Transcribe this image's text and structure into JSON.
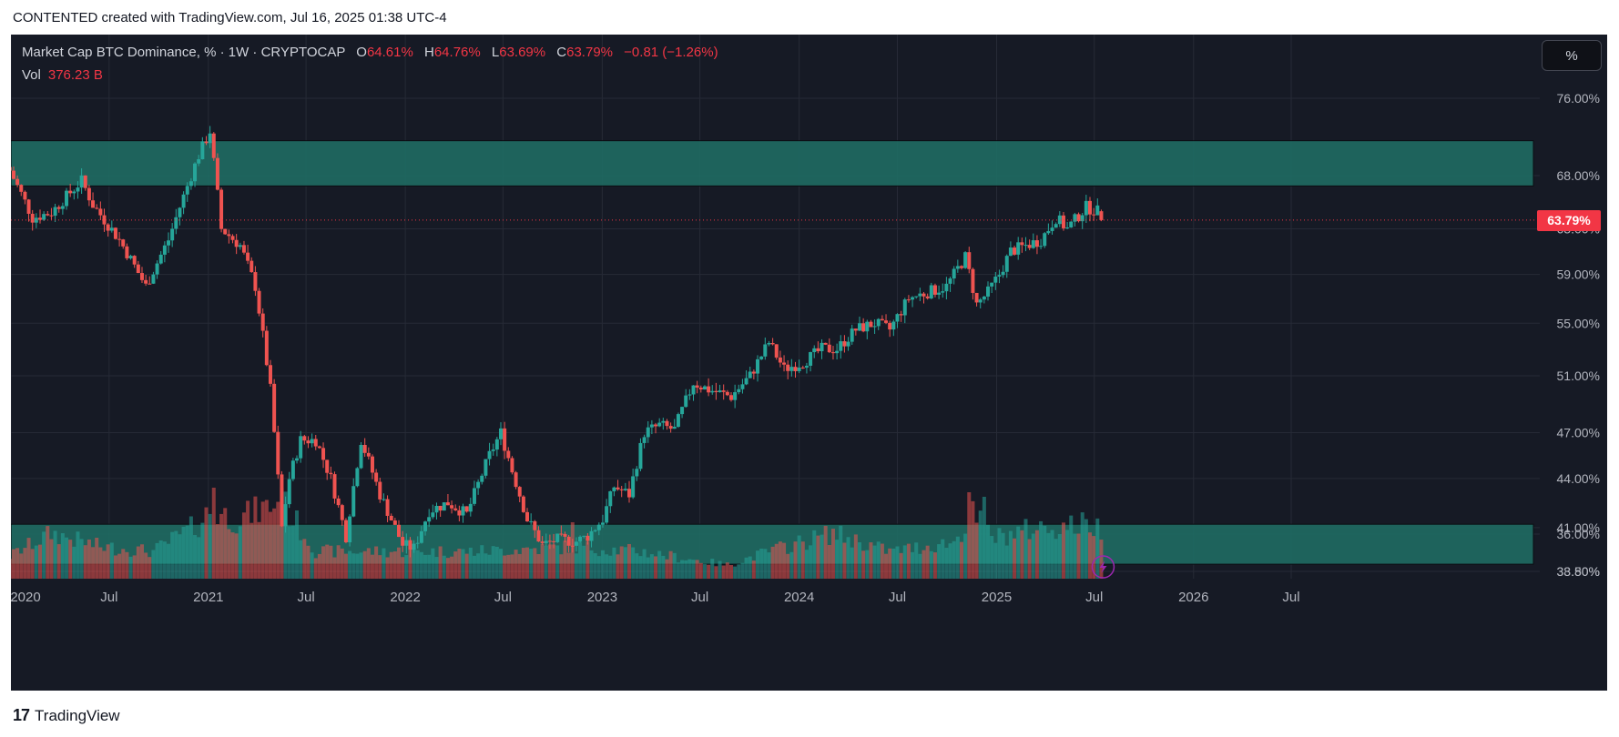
{
  "header": {
    "caption": "CONTENTED created with TradingView.com, Jul 16, 2025 01:38 UTC-4"
  },
  "legend": {
    "symbol": "Market Cap BTC Dominance, % · 1W · CRYPTOCAP",
    "o_label": "O",
    "o_value": "64.61%",
    "h_label": "H",
    "h_value": "64.76%",
    "l_label": "L",
    "l_value": "63.69%",
    "c_label": "C",
    "c_value": "63.79%",
    "change": "−0.81 (−1.26%)",
    "vol_label": "Vol",
    "vol_value": "376.23 B"
  },
  "toolbar": {
    "scale_button": "%"
  },
  "price_tag": "63.79%",
  "footer": {
    "brand": "TradingView",
    "brand_mark": "17"
  },
  "colors": {
    "up": "#26a69a",
    "down": "#ef5350",
    "zone": "#1f6b63",
    "background": "#161a25",
    "text": "#b2b5be",
    "last_price": "#f23645"
  },
  "chart_data": {
    "type": "candlestick",
    "symbol": "CRYPTOCAP:BTC.D",
    "interval": "1W",
    "scale": "log",
    "grid": true,
    "y_ticks": [
      "76.00%",
      "68.00%",
      "63.00%",
      "59.00%",
      "55.00%",
      "51.00%",
      "47.00%",
      "44.00%",
      "41.00%",
      "38.50%",
      "36.00%",
      "33.80%"
    ],
    "x_ticks": [
      "2020",
      "Jul",
      "2021",
      "Jul",
      "2022",
      "Jul",
      "2023",
      "Jul",
      "2024",
      "Jul",
      "2025",
      "Jul",
      "2026",
      "Jul"
    ],
    "x_tick_dates": [
      "2020-01-01",
      "2020-07-01",
      "2021-01-01",
      "2021-07-01",
      "2022-01-01",
      "2022-07-01",
      "2023-01-01",
      "2023-07-01",
      "2024-01-01",
      "2024-07-01",
      "2025-01-01",
      "2025-07-01",
      "2026-01-01",
      "2026-07-01"
    ],
    "first_week": "2019-12-30",
    "last_week": "2025-07-14",
    "zones": [
      {
        "from": 67.0,
        "to": 71.5
      },
      {
        "from": 38.9,
        "to": 41.2
      }
    ],
    "close_anchors": [
      [
        "2019-12-30",
        68.5
      ],
      [
        "2020-02-10",
        64.0
      ],
      [
        "2020-03-16",
        64.5
      ],
      [
        "2020-05-11",
        67.5
      ],
      [
        "2020-06-01",
        65.2
      ],
      [
        "2020-07-20",
        62.0
      ],
      [
        "2020-09-07",
        58.0
      ],
      [
        "2020-10-19",
        62.0
      ],
      [
        "2020-12-14",
        70.0
      ],
      [
        "2021-01-04",
        72.5
      ],
      [
        "2021-01-25",
        63.0
      ],
      [
        "2021-03-01",
        61.5
      ],
      [
        "2021-03-29",
        58.0
      ],
      [
        "2021-04-26",
        50.0
      ],
      [
        "2021-05-17",
        41.0
      ],
      [
        "2021-05-31",
        44.0
      ],
      [
        "2021-06-21",
        46.5
      ],
      [
        "2021-07-19",
        46.5
      ],
      [
        "2021-08-16",
        44.0
      ],
      [
        "2021-09-13",
        40.5
      ],
      [
        "2021-10-11",
        46.5
      ],
      [
        "2021-11-15",
        43.0
      ],
      [
        "2021-12-27",
        40.0
      ],
      [
        "2022-01-17",
        39.8
      ],
      [
        "2022-02-14",
        42.0
      ],
      [
        "2022-03-21",
        42.5
      ],
      [
        "2022-04-25",
        41.8
      ],
      [
        "2022-06-06",
        45.5
      ],
      [
        "2022-06-27",
        47.0
      ],
      [
        "2022-07-18",
        44.5
      ],
      [
        "2022-08-15",
        41.5
      ],
      [
        "2022-09-12",
        40.0
      ],
      [
        "2022-10-10",
        40.3
      ],
      [
        "2022-11-14",
        40.2
      ],
      [
        "2022-12-05",
        40.5
      ],
      [
        "2023-01-02",
        41.5
      ],
      [
        "2023-01-23",
        43.5
      ],
      [
        "2023-02-20",
        43.0
      ],
      [
        "2023-03-20",
        47.0
      ],
      [
        "2023-04-17",
        47.5
      ],
      [
        "2023-05-15",
        47.2
      ],
      [
        "2023-06-19",
        50.5
      ],
      [
        "2023-07-17",
        50.0
      ],
      [
        "2023-08-28",
        49.5
      ],
      [
        "2023-10-02",
        51.0
      ],
      [
        "2023-11-06",
        53.5
      ],
      [
        "2023-12-04",
        51.5
      ],
      [
        "2024-01-08",
        52.0
      ],
      [
        "2024-02-12",
        53.0
      ],
      [
        "2024-03-11",
        53.0
      ],
      [
        "2024-04-15",
        54.5
      ],
      [
        "2024-05-20",
        55.0
      ],
      [
        "2024-06-17",
        54.5
      ],
      [
        "2024-07-22",
        57.0
      ],
      [
        "2024-08-26",
        57.5
      ],
      [
        "2024-09-30",
        58.0
      ],
      [
        "2024-11-04",
        60.5
      ],
      [
        "2024-11-25",
        56.5
      ],
      [
        "2024-12-16",
        57.5
      ],
      [
        "2025-01-06",
        59.0
      ],
      [
        "2025-01-27",
        61.0
      ],
      [
        "2025-02-24",
        61.5
      ],
      [
        "2025-03-24",
        62.0
      ],
      [
        "2025-04-21",
        64.0
      ],
      [
        "2025-05-12",
        63.0
      ],
      [
        "2025-06-16",
        65.0
      ],
      [
        "2025-07-07",
        64.6
      ],
      [
        "2025-07-14",
        63.79
      ]
    ],
    "volume_anchors": [
      [
        "2019-12-30",
        0.25
      ],
      [
        "2020-03-16",
        0.5
      ],
      [
        "2020-06-15",
        0.35
      ],
      [
        "2020-09-21",
        0.3
      ],
      [
        "2020-12-14",
        0.6
      ],
      [
        "2021-01-04",
        0.75
      ],
      [
        "2021-02-22",
        0.65
      ],
      [
        "2021-05-17",
        0.85
      ],
      [
        "2021-07-19",
        0.3
      ],
      [
        "2021-11-15",
        0.3
      ],
      [
        "2022-05-09",
        0.3
      ],
      [
        "2022-11-07",
        0.35
      ],
      [
        "2023-03-13",
        0.3
      ],
      [
        "2023-08-21",
        0.15
      ],
      [
        "2023-11-06",
        0.3
      ],
      [
        "2024-03-04",
        0.5
      ],
      [
        "2024-06-17",
        0.3
      ],
      [
        "2024-10-14",
        0.4
      ],
      [
        "2024-11-18",
        0.7
      ],
      [
        "2024-12-30",
        0.45
      ],
      [
        "2025-03-10",
        0.55
      ],
      [
        "2025-06-23",
        0.6
      ],
      [
        "2025-07-14",
        0.55
      ]
    ],
    "volume_spikes": [
      [
        "2021-01-11",
        1.0
      ],
      [
        "2021-05-17",
        1.0
      ],
      [
        "2022-11-07",
        0.62
      ],
      [
        "2024-11-11",
        0.95
      ],
      [
        "2024-12-09",
        0.9
      ]
    ],
    "last": {
      "open": 64.61,
      "high": 64.76,
      "low": 63.69,
      "close": 63.79,
      "volume_b": 376.23
    }
  }
}
